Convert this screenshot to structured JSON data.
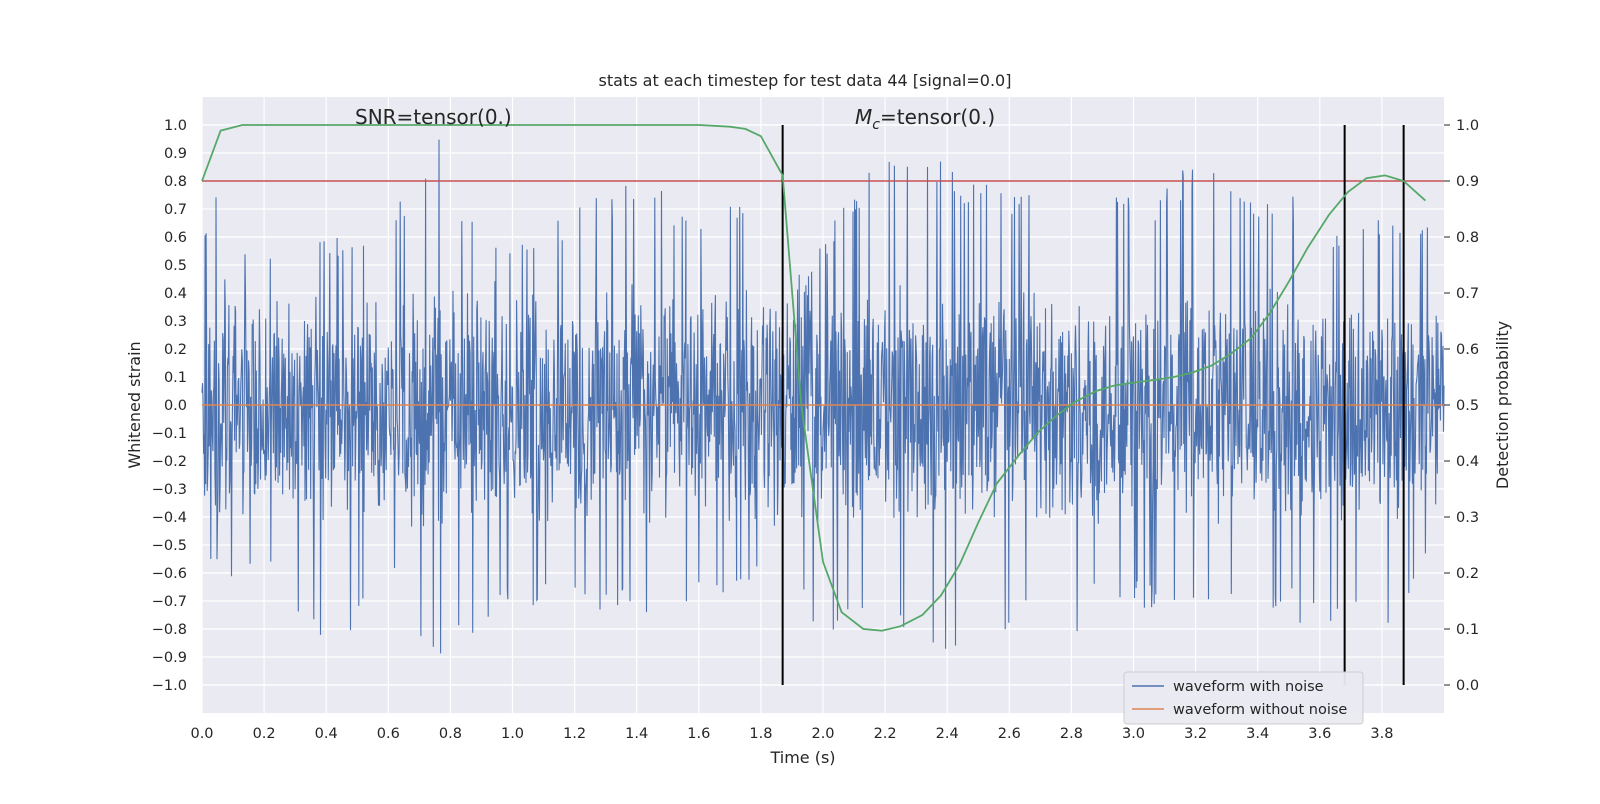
{
  "chart_data": {
    "type": "line",
    "title": "stats at each timestep for test data 44 [signal=0.0]",
    "xlabel": "Time (s)",
    "ylabel": "Whitened strain",
    "y2label": "Detection probability",
    "xlim": [
      0.0,
      4.0
    ],
    "ylim": [
      -1.1,
      1.1
    ],
    "y2lim": [
      -0.05,
      1.05
    ],
    "x_ticks": [
      0.0,
      0.2,
      0.4,
      0.6,
      0.8,
      1.0,
      1.2,
      1.4,
      1.6,
      1.8,
      2.0,
      2.2,
      2.4,
      2.6,
      2.8,
      3.0,
      3.2,
      3.4,
      3.6,
      3.8
    ],
    "x_tick_labels": [
      "0.0",
      "0.2",
      "0.4",
      "0.6",
      "0.8",
      "1.0",
      "1.2",
      "1.4",
      "1.6",
      "1.8",
      "2.0",
      "2.2",
      "2.4",
      "2.6",
      "2.8",
      "3.0",
      "3.2",
      "3.4",
      "3.6",
      "3.8"
    ],
    "y_ticks": [
      1.0,
      0.9,
      0.8,
      0.7,
      0.6,
      0.5,
      0.4,
      0.3,
      0.2,
      0.1,
      0.0,
      -0.1,
      -0.2,
      -0.3,
      -0.4,
      -0.5,
      -0.6,
      -0.7,
      -0.8,
      -0.9,
      -1.0
    ],
    "y_tick_labels": [
      "1.0",
      "0.9",
      "0.8",
      "0.7",
      "0.6",
      "0.5",
      "0.4",
      "0.3",
      "0.2",
      "0.1",
      "0.0",
      "−0.1",
      "−0.2",
      "−0.3",
      "−0.4",
      "−0.5",
      "−0.6",
      "−0.7",
      "−0.8",
      "−0.9",
      "−1.0"
    ],
    "y2_ticks": [
      1.0,
      0.9,
      0.8,
      0.7,
      0.6,
      0.5,
      0.4,
      0.3,
      0.2,
      0.1,
      0.0
    ],
    "y2_tick_labels": [
      "1.0",
      "0.9",
      "0.8",
      "0.7",
      "0.6",
      "0.5",
      "0.4",
      "0.3",
      "0.2",
      "0.1",
      "0.0"
    ],
    "grid": true,
    "annotations": {
      "snr": "SNR=tensor(0.)",
      "mc_symbol": "M",
      "mc_sub": "c",
      "mc_value": "=tensor(0.)"
    },
    "threshold": 0.9,
    "vlines_x": [
      1.87,
      3.68,
      3.87
    ],
    "series": [
      {
        "name": "waveform with noise",
        "color": "#4c72b0",
        "axis": "left",
        "envelope": {
          "x": [
            0.0,
            0.05,
            0.1,
            0.2,
            0.4,
            0.6,
            0.76,
            0.8,
            1.0,
            1.2,
            1.4,
            1.6,
            1.8,
            1.87,
            2.0,
            2.2,
            2.4,
            2.6,
            2.8,
            2.88,
            3.0,
            3.2,
            3.4,
            3.6,
            3.68,
            3.8,
            3.87,
            4.0
          ],
          "upper": [
            0.55,
            0.9,
            0.65,
            0.6,
            0.62,
            0.65,
            1.0,
            0.72,
            0.62,
            0.7,
            0.82,
            0.7,
            0.78,
            0.4,
            0.6,
            0.92,
            0.88,
            0.75,
            0.78,
            0.98,
            0.72,
            0.87,
            0.75,
            0.78,
            0.55,
            0.72,
            0.62,
            0.8
          ],
          "lower": [
            -0.5,
            -0.6,
            -0.64,
            -0.58,
            -0.95,
            -0.6,
            -0.96,
            -0.9,
            -0.75,
            -0.7,
            -0.78,
            -0.7,
            -0.62,
            -0.45,
            -0.88,
            -0.78,
            -0.96,
            -0.8,
            -0.86,
            -0.7,
            -0.72,
            -0.76,
            -0.7,
            -0.82,
            -0.8,
            -0.88,
            -0.8,
            -0.4
          ],
          "typical": 0.38
        }
      },
      {
        "name": "waveform without noise",
        "color": "#dd8452",
        "axis": "left",
        "x": [
          0.0,
          4.0
        ],
        "y": [
          0.0,
          0.0
        ]
      },
      {
        "name": "",
        "color": "#55a868",
        "axis": "right",
        "x": [
          0.0,
          0.06,
          0.13,
          0.2,
          0.4,
          0.6,
          0.8,
          1.0,
          1.2,
          1.4,
          1.6,
          1.7,
          1.75,
          1.8,
          1.87,
          1.93,
          2.0,
          2.06,
          2.13,
          2.19,
          2.25,
          2.32,
          2.38,
          2.44,
          2.5,
          2.56,
          2.63,
          2.69,
          2.75,
          2.81,
          2.88,
          2.94,
          3.0,
          3.07,
          3.13,
          3.19,
          3.25,
          3.31,
          3.38,
          3.44,
          3.5,
          3.56,
          3.63,
          3.69,
          3.75,
          3.81,
          3.87,
          3.94
        ],
        "y": [
          0.9,
          0.99,
          1.0,
          1.0,
          1.0,
          1.0,
          1.0,
          1.0,
          1.0,
          1.0,
          1.0,
          0.997,
          0.993,
          0.98,
          0.91,
          0.5,
          0.22,
          0.13,
          0.1,
          0.097,
          0.105,
          0.125,
          0.16,
          0.215,
          0.29,
          0.36,
          0.41,
          0.45,
          0.48,
          0.505,
          0.525,
          0.535,
          0.54,
          0.545,
          0.55,
          0.558,
          0.57,
          0.59,
          0.62,
          0.665,
          0.72,
          0.78,
          0.84,
          0.88,
          0.905,
          0.91,
          0.9,
          0.865
        ]
      }
    ],
    "legend": {
      "position": "lower right",
      "entries": [
        "waveform with noise",
        "waveform without noise"
      ]
    }
  },
  "colors": {
    "plot_bg": "#eaeaf2",
    "grid": "#ffffff",
    "noise": "#4c72b0",
    "clean": "#dd8452",
    "prob": "#55a868",
    "threshold": "#c44e52",
    "vline": "#000000"
  }
}
